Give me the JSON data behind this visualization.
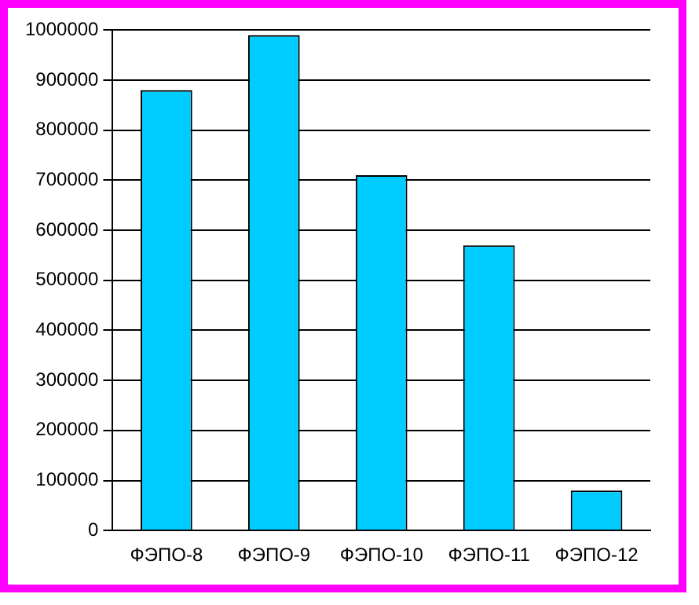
{
  "chart_data": {
    "type": "bar",
    "categories": [
      "ФЭПО-8",
      "ФЭПО-9",
      "ФЭПО-10",
      "ФЭПО-11",
      "ФЭПО-12"
    ],
    "values": [
      880000,
      990000,
      710000,
      570000,
      80000
    ],
    "color": "#00ccff",
    "ylim": [
      0,
      1000000
    ],
    "yticks": [
      0,
      100000,
      200000,
      300000,
      400000,
      500000,
      600000,
      700000,
      800000,
      900000,
      1000000
    ],
    "grid": "y"
  }
}
